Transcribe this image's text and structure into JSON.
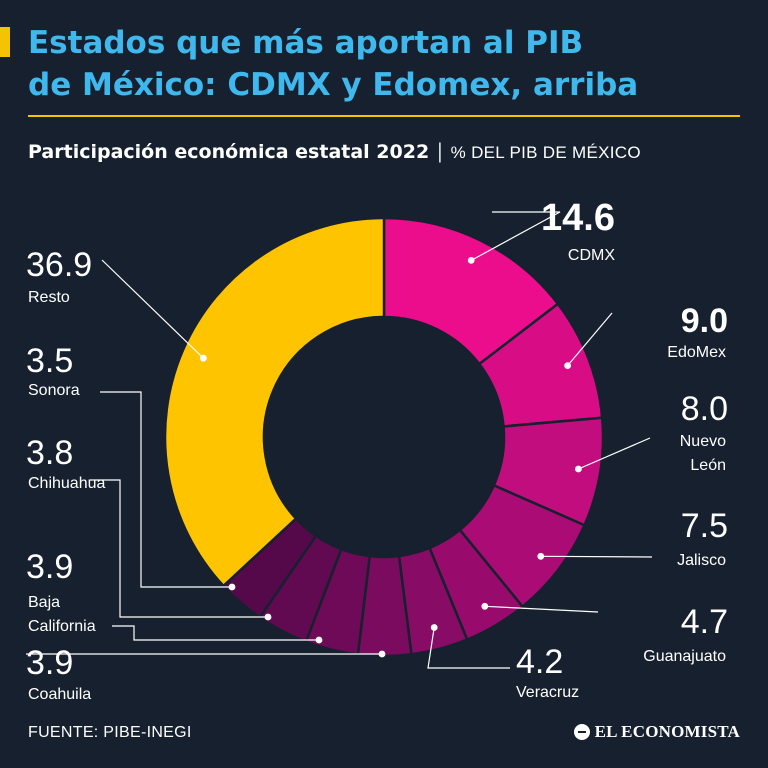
{
  "title_line1": "Estados que más aportan al PIB",
  "title_line2": "de México: CDMX y Edomex, arriba",
  "subtitle_main": "Participación económica estatal 2022",
  "subtitle_sep": "|",
  "subtitle_unit": "% DEL PIB DE MÉXICO",
  "source": "FUENTE: PIBE-INEGI",
  "brand": "EL ECONOMISTA",
  "colors": {
    "background": "#17202e",
    "title": "#3fb8ee",
    "accent": "#f5c400",
    "resto": "#ffc400",
    "cdmx": "#ec0d8c"
  },
  "chart_data": {
    "type": "pie",
    "donut": true,
    "slices": [
      {
        "label": "CDMX",
        "value": 14.6,
        "display": "14.6",
        "color": "#ec0d8c",
        "bold": true
      },
      {
        "label": "EdoMex",
        "value": 9.0,
        "display": "9.0",
        "color": "#d80d85",
        "bold": true
      },
      {
        "label": "Nuevo León",
        "value": 8.0,
        "display": "8.0",
        "color": "#c20d7e"
      },
      {
        "label": "Jalisco",
        "value": 7.5,
        "display": "7.5",
        "color": "#ab0b74"
      },
      {
        "label": "Guanajuato",
        "value": 4.7,
        "display": "4.7",
        "color": "#980b6c"
      },
      {
        "label": "Veracruz",
        "value": 4.2,
        "display": "4.2",
        "color": "#880c66"
      },
      {
        "label": "Coahuila",
        "value": 3.9,
        "display": "3.9",
        "color": "#7b0b5f"
      },
      {
        "label": "Baja California",
        "value": 3.9,
        "display": "3.9",
        "color": "#6e0a58"
      },
      {
        "label": "Chihuahua",
        "value": 3.8,
        "display": "3.8",
        "color": "#620a51"
      },
      {
        "label": "Sonora",
        "value": 3.5,
        "display": "3.5",
        "color": "#55094a"
      },
      {
        "label": "Resto",
        "value": 36.9,
        "display": "36.9",
        "color": "#ffc400"
      }
    ]
  }
}
